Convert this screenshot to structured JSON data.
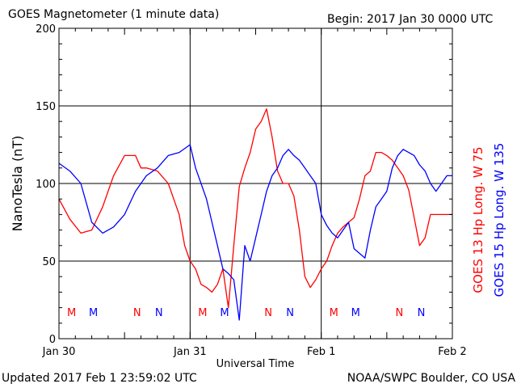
{
  "header": {
    "title": "GOES Magnetometer (1 minute data)",
    "begin": "Begin:  2017 Jan 30 0000 UTC"
  },
  "footer": {
    "updated": "Updated 2017 Feb  1 23:59:02 UTC",
    "credit": "NOAA/SWPC Boulder, CO USA"
  },
  "colors": {
    "goes13": "#ff0000",
    "goes15": "#0000ff",
    "axis": "#000000"
  },
  "chart_data": {
    "type": "line",
    "title": "GOES Magnetometer (1 minute data)",
    "xlabel": "Universal Time",
    "ylabel": "NanoTesla (nT)",
    "xlim": [
      0,
      72
    ],
    "ylim": [
      0,
      200
    ],
    "x_ticks": [
      {
        "label": "Jan 30",
        "value": 0
      },
      {
        "label": "Jan 31",
        "value": 24
      },
      {
        "label": "Feb 1",
        "value": 48
      },
      {
        "label": "Feb 2",
        "value": 72
      }
    ],
    "y_ticks": [
      0,
      50,
      100,
      150,
      200
    ],
    "grid": true,
    "legend_position": "right",
    "series": [
      {
        "name": "GOES 13 Hp  Long. W 75",
        "color": "#ff0000",
        "x": [
          0,
          2,
          4,
          5,
          6,
          8,
          10,
          12,
          13,
          14,
          15,
          16,
          18,
          20,
          22,
          23,
          24,
          25,
          26,
          27,
          28,
          29,
          30,
          31,
          32,
          33,
          34,
          35,
          36,
          37,
          38,
          39,
          40,
          41,
          42,
          43,
          44,
          45,
          46,
          47,
          48,
          49,
          50,
          51,
          52,
          53,
          54,
          55,
          56,
          57,
          58,
          59,
          60,
          61,
          62,
          63,
          64,
          65,
          66,
          67,
          68,
          69,
          70,
          71,
          72
        ],
        "values": [
          90,
          77,
          68,
          69,
          70,
          85,
          105,
          118,
          118,
          118,
          110,
          110,
          108,
          100,
          80,
          60,
          50,
          45,
          35,
          33,
          30,
          35,
          45,
          20,
          60,
          98,
          110,
          120,
          135,
          140,
          148,
          130,
          108,
          100,
          100,
          92,
          70,
          40,
          33,
          38,
          45,
          50,
          60,
          68,
          72,
          75,
          78,
          90,
          105,
          108,
          120,
          120,
          118,
          115,
          110,
          105,
          96,
          78,
          60,
          65,
          80,
          80,
          80,
          80,
          80
        ]
      },
      {
        "name": "GOES 15 Hp  Long. W 135",
        "color": "#0000ff",
        "x": [
          0,
          2,
          4,
          6,
          8,
          10,
          12,
          14,
          16,
          18,
          20,
          22,
          24,
          25,
          26,
          27,
          28,
          29,
          30,
          31,
          32,
          33,
          34,
          35,
          36,
          37,
          38,
          39,
          40,
          41,
          42,
          43,
          44,
          45,
          46,
          47,
          48,
          49,
          50,
          51,
          52,
          53,
          54,
          55,
          56,
          57,
          58,
          59,
          60,
          61,
          62,
          63,
          64,
          65,
          66,
          67,
          68,
          69,
          70,
          71,
          72
        ],
        "values": [
          113,
          108,
          100,
          75,
          68,
          72,
          80,
          95,
          105,
          110,
          118,
          120,
          125,
          110,
          100,
          90,
          75,
          60,
          45,
          42,
          38,
          12,
          60,
          50,
          65,
          80,
          95,
          105,
          110,
          118,
          122,
          118,
          115,
          110,
          105,
          100,
          80,
          73,
          68,
          65,
          70,
          75,
          58,
          55,
          52,
          70,
          85,
          90,
          95,
          110,
          118,
          122,
          120,
          118,
          112,
          108,
          100,
          95,
          100,
          105,
          105
        ]
      }
    ],
    "markers": [
      {
        "label": "M",
        "x": 2.3,
        "color": "#ff0000"
      },
      {
        "label": "M",
        "x": 6.3,
        "color": "#0000ff"
      },
      {
        "label": "N",
        "x": 14.3,
        "color": "#ff0000"
      },
      {
        "label": "N",
        "x": 18.3,
        "color": "#0000ff"
      },
      {
        "label": "M",
        "x": 26.3,
        "color": "#ff0000"
      },
      {
        "label": "M",
        "x": 30.3,
        "color": "#0000ff"
      },
      {
        "label": "N",
        "x": 38.3,
        "color": "#ff0000"
      },
      {
        "label": "N",
        "x": 42.3,
        "color": "#0000ff"
      },
      {
        "label": "M",
        "x": 50.3,
        "color": "#ff0000"
      },
      {
        "label": "M",
        "x": 54.3,
        "color": "#0000ff"
      },
      {
        "label": "N",
        "x": 62.3,
        "color": "#ff0000"
      },
      {
        "label": "N",
        "x": 66.3,
        "color": "#0000ff"
      }
    ]
  }
}
